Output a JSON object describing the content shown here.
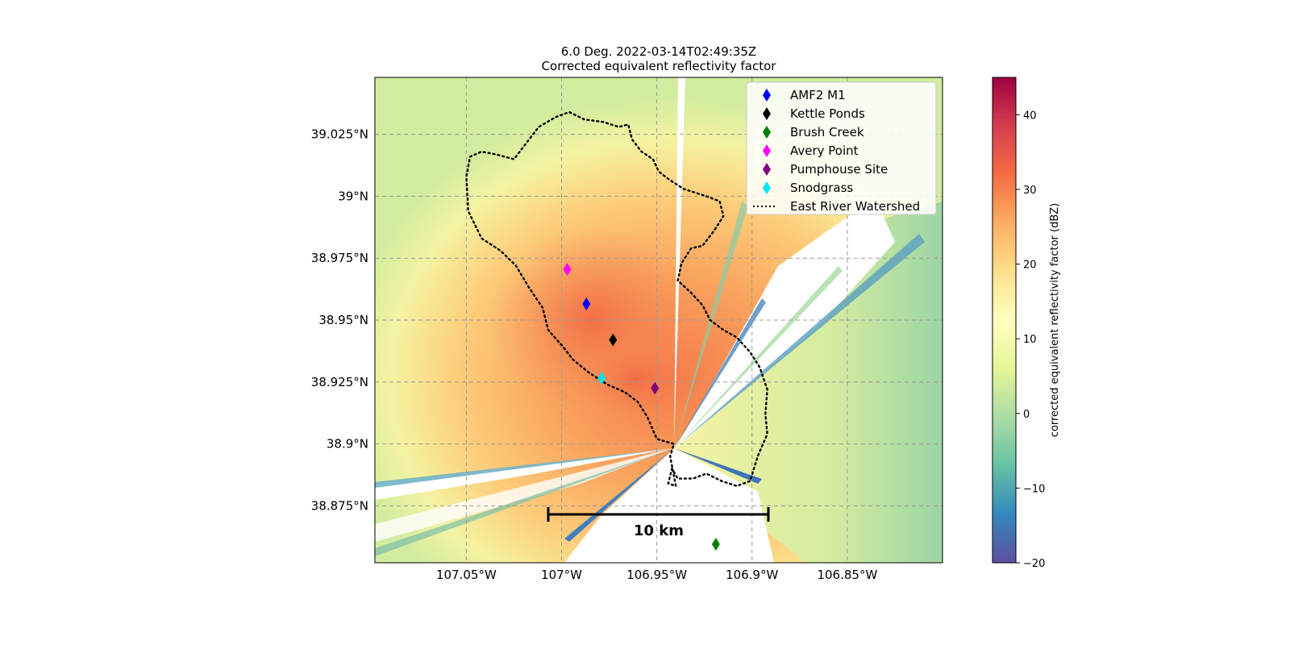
{
  "title": {
    "line1": "6.0 Deg. 2022-03-14T02:49:35Z",
    "line2": "Corrected equivalent reflectivity factor"
  },
  "chart_data": {
    "type": "heatmap",
    "title": "6.0 Deg. 2022-03-14T02:49:35Z Corrected equivalent reflectivity factor",
    "xlim": [
      -107.098,
      -106.8
    ],
    "ylim": [
      38.852,
      39.048
    ],
    "x_ticks": [
      {
        "value": -107.05,
        "label": "107.05°W"
      },
      {
        "value": -107.0,
        "label": "107°W"
      },
      {
        "value": -106.95,
        "label": "106.95°W"
      },
      {
        "value": -106.9,
        "label": "106.9°W"
      },
      {
        "value": -106.85,
        "label": "106.85°W"
      }
    ],
    "y_ticks": [
      {
        "value": 38.875,
        "label": "38.875°N"
      },
      {
        "value": 38.9,
        "label": "38.9°N"
      },
      {
        "value": 38.925,
        "label": "38.925°N"
      },
      {
        "value": 38.95,
        "label": "38.95°N"
      },
      {
        "value": 38.975,
        "label": "38.975°N"
      },
      {
        "value": 39.0,
        "label": "39°N"
      },
      {
        "value": 39.025,
        "label": "39.025°N"
      }
    ],
    "grid": true,
    "radar_center": {
      "lon": -106.943,
      "lat": 38.8995
    },
    "sites": [
      {
        "name": "AMF2 M1",
        "lon": -106.987,
        "lat": 38.9565,
        "color": "#0000ff"
      },
      {
        "name": "Kettle Ponds",
        "lon": -106.973,
        "lat": 38.942,
        "color": "#000000"
      },
      {
        "name": "Brush Creek",
        "lon": -106.919,
        "lat": 38.8595,
        "color": "#008000"
      },
      {
        "name": "Avery Point",
        "lon": -106.997,
        "lat": 38.9705,
        "color": "#ff00ff"
      },
      {
        "name": "Pumphouse Site",
        "lon": -106.951,
        "lat": 38.9225,
        "color": "#800080"
      },
      {
        "name": "Snodgrass",
        "lon": -106.979,
        "lat": 38.9265,
        "color": "#00e5ee"
      }
    ],
    "legend": {
      "placement": "upper-right",
      "entries": [
        "AMF2 M1",
        "Kettle Ponds",
        "Brush Creek",
        "Avery Point",
        "Pumphouse Site",
        "Snodgrass",
        "East River Watershed"
      ],
      "watershed_label": "East River Watershed"
    },
    "watershed": [
      [
        -107.048,
        39.016
      ],
      [
        -107.042,
        39.018
      ],
      [
        -107.035,
        39.017
      ],
      [
        -107.025,
        39.015
      ],
      [
        -107.02,
        39.02
      ],
      [
        -107.012,
        39.028
      ],
      [
        -107.003,
        39.032
      ],
      [
        -106.996,
        39.034
      ],
      [
        -106.988,
        39.031
      ],
      [
        -106.978,
        39.03
      ],
      [
        -106.97,
        39.028
      ],
      [
        -106.965,
        39.029
      ],
      [
        -106.963,
        39.023
      ],
      [
        -106.958,
        39.018
      ],
      [
        -106.952,
        39.015
      ],
      [
        -106.949,
        39.01
      ],
      [
        -106.944,
        39.007
      ],
      [
        -106.936,
        39.003
      ],
      [
        -106.924,
        39.0
      ],
      [
        -106.917,
        38.998
      ],
      [
        -106.915,
        38.992
      ],
      [
        -106.92,
        38.986
      ],
      [
        -106.926,
        38.98
      ],
      [
        -106.932,
        38.979
      ],
      [
        -106.937,
        38.973
      ],
      [
        -106.939,
        38.966
      ],
      [
        -106.932,
        38.961
      ],
      [
        -106.926,
        38.956
      ],
      [
        -106.922,
        38.95
      ],
      [
        -106.915,
        38.946
      ],
      [
        -106.908,
        38.943
      ],
      [
        -106.901,
        38.937
      ],
      [
        -106.896,
        38.931
      ],
      [
        -106.892,
        38.922
      ],
      [
        -106.893,
        38.912
      ],
      [
        -106.892,
        38.904
      ],
      [
        -106.897,
        38.895
      ],
      [
        -106.901,
        38.885
      ],
      [
        -106.908,
        38.883
      ],
      [
        -106.916,
        38.885
      ],
      [
        -106.924,
        38.888
      ],
      [
        -106.931,
        38.886
      ],
      [
        -106.939,
        38.886
      ],
      [
        -106.942,
        38.89
      ],
      [
        -106.944,
        38.884
      ],
      [
        -106.94,
        38.883
      ],
      [
        -106.943,
        38.895
      ],
      [
        -106.941,
        38.9
      ],
      [
        -106.95,
        38.902
      ],
      [
        -106.955,
        38.911
      ],
      [
        -106.96,
        38.917
      ],
      [
        -106.967,
        38.921
      ],
      [
        -106.976,
        38.924
      ],
      [
        -106.986,
        38.929
      ],
      [
        -106.994,
        38.934
      ],
      [
        -106.999,
        38.939
      ],
      [
        -107.007,
        38.946
      ],
      [
        -107.01,
        38.955
      ],
      [
        -107.017,
        38.963
      ],
      [
        -107.024,
        38.972
      ],
      [
        -107.032,
        38.978
      ],
      [
        -107.042,
        38.983
      ],
      [
        -107.049,
        38.994
      ],
      [
        -107.05,
        39.008
      ],
      [
        -107.048,
        39.016
      ]
    ],
    "scale_bar": {
      "label": "10 km"
    }
  },
  "colorbar": {
    "label": "corrected equivalent reflectivity factor (dBZ)",
    "vmin": -20,
    "vmax": 45,
    "ticks": [
      -20,
      -10,
      0,
      10,
      20,
      30,
      40
    ],
    "tick_labels": [
      "−20",
      "−10",
      "0",
      "10",
      "20",
      "30",
      "40"
    ],
    "colormap": "Spectral_r",
    "colors": [
      "#5e4fa2",
      "#3288bd",
      "#66c2a5",
      "#abdda4",
      "#e6f598",
      "#ffffbf",
      "#fee08b",
      "#fdae61",
      "#f46d43",
      "#d53e4f",
      "#9e0142"
    ]
  }
}
